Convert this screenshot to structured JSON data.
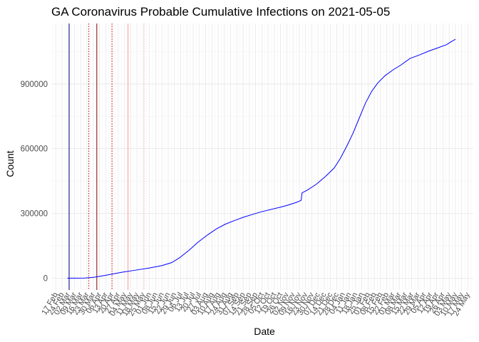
{
  "chart_data": {
    "type": "line",
    "title": "GA Coronavirus Probable Cumulative Infections on 2021-05-05",
    "xlabel": "Date",
    "ylabel": "Count",
    "x_type": "date",
    "xlim": [
      "2020-02-12",
      "2021-05-30"
    ],
    "ylim": [
      -55000,
      1180000
    ],
    "y_ticks": [
      0,
      300000,
      600000,
      900000
    ],
    "y_tick_labels": [
      "0",
      "300000",
      "600000",
      "900000"
    ],
    "x_ticks": [
      {
        "date": "2020-02-17",
        "label": "17 Feb"
      },
      {
        "date": "2020-02-24",
        "label": "24 Feb"
      },
      {
        "date": "2020-03-02",
        "label": "02 Mar"
      },
      {
        "date": "2020-03-09",
        "label": "09 Mar"
      },
      {
        "date": "2020-03-16",
        "label": "16 Mar"
      },
      {
        "date": "2020-03-23",
        "label": "23 Mar"
      },
      {
        "date": "2020-03-30",
        "label": "30 Mar"
      },
      {
        "date": "2020-04-06",
        "label": "06 Apr"
      },
      {
        "date": "2020-04-13",
        "label": "13 Apr"
      },
      {
        "date": "2020-04-20",
        "label": "20 Apr"
      },
      {
        "date": "2020-04-27",
        "label": "27 Apr"
      },
      {
        "date": "2020-05-04",
        "label": "04 May"
      },
      {
        "date": "2020-05-11",
        "label": "11 May"
      },
      {
        "date": "2020-05-18",
        "label": "18 May"
      },
      {
        "date": "2020-05-25",
        "label": "25 May"
      },
      {
        "date": "2020-06-01",
        "label": "01 Jun"
      },
      {
        "date": "2020-06-08",
        "label": "08 Jun"
      },
      {
        "date": "2020-06-15",
        "label": "15 Jun"
      },
      {
        "date": "2020-06-22",
        "label": "22 Jun"
      },
      {
        "date": "2020-06-29",
        "label": "29 Jun"
      },
      {
        "date": "2020-07-06",
        "label": "06 Jul"
      },
      {
        "date": "2020-07-13",
        "label": "13 Jul"
      },
      {
        "date": "2020-07-20",
        "label": "20 Jul"
      },
      {
        "date": "2020-07-27",
        "label": "27 Jul"
      },
      {
        "date": "2020-08-03",
        "label": "03 Aug"
      },
      {
        "date": "2020-08-10",
        "label": "10 Aug"
      },
      {
        "date": "2020-08-17",
        "label": "17 Aug"
      },
      {
        "date": "2020-08-24",
        "label": "24 Aug"
      },
      {
        "date": "2020-08-31",
        "label": "31 Aug"
      },
      {
        "date": "2020-09-07",
        "label": "07 Sep"
      },
      {
        "date": "2020-09-14",
        "label": "14 Sep"
      },
      {
        "date": "2020-09-21",
        "label": "21 Sep"
      },
      {
        "date": "2020-09-28",
        "label": "28 Sep"
      },
      {
        "date": "2020-10-05",
        "label": "05 Oct"
      },
      {
        "date": "2020-10-12",
        "label": "12 Oct"
      },
      {
        "date": "2020-10-19",
        "label": "19 Oct"
      },
      {
        "date": "2020-10-26",
        "label": "26 Oct"
      },
      {
        "date": "2020-11-02",
        "label": "02 Nov"
      },
      {
        "date": "2020-11-09",
        "label": "09 Nov"
      },
      {
        "date": "2020-11-16",
        "label": "16 Nov"
      },
      {
        "date": "2020-11-23",
        "label": "23 Nov"
      },
      {
        "date": "2020-11-30",
        "label": "30 Nov"
      },
      {
        "date": "2020-12-07",
        "label": "07 Dec"
      },
      {
        "date": "2020-12-14",
        "label": "14 Dec"
      },
      {
        "date": "2020-12-21",
        "label": "21 Dec"
      },
      {
        "date": "2020-12-28",
        "label": "28 Dec"
      },
      {
        "date": "2021-01-04",
        "label": "04 Jan"
      },
      {
        "date": "2021-01-11",
        "label": "11 Jan"
      },
      {
        "date": "2021-01-18",
        "label": "18 Jan"
      },
      {
        "date": "2021-01-25",
        "label": "25 Jan"
      },
      {
        "date": "2021-02-01",
        "label": "01 Feb"
      },
      {
        "date": "2021-02-08",
        "label": "08 Feb"
      },
      {
        "date": "2021-02-15",
        "label": "15 Feb"
      },
      {
        "date": "2021-02-22",
        "label": "22 Feb"
      },
      {
        "date": "2021-03-01",
        "label": "01 Mar"
      },
      {
        "date": "2021-03-08",
        "label": "08 Mar"
      },
      {
        "date": "2021-03-15",
        "label": "15 Mar"
      },
      {
        "date": "2021-03-22",
        "label": "22 Mar"
      },
      {
        "date": "2021-03-29",
        "label": "29 Mar"
      },
      {
        "date": "2021-04-05",
        "label": "05 Apr"
      },
      {
        "date": "2021-04-12",
        "label": "12 Apr"
      },
      {
        "date": "2021-04-19",
        "label": "19 Apr"
      },
      {
        "date": "2021-04-26",
        "label": "26 Apr"
      },
      {
        "date": "2021-05-03",
        "label": "03 May"
      },
      {
        "date": "2021-05-10",
        "label": "10 May"
      },
      {
        "date": "2021-05-17",
        "label": "17 May"
      },
      {
        "date": "2021-05-24",
        "label": "24 May"
      }
    ],
    "grid": true,
    "legend": "none",
    "series": [
      {
        "color": "#0000ff",
        "points": [
          {
            "x": "2020-03-01",
            "y": 0
          },
          {
            "x": "2020-03-10",
            "y": 20
          },
          {
            "x": "2020-03-20",
            "y": 500
          },
          {
            "x": "2020-03-31",
            "y": 4000
          },
          {
            "x": "2020-04-10",
            "y": 11000
          },
          {
            "x": "2020-04-20",
            "y": 18500
          },
          {
            "x": "2020-05-01",
            "y": 27000
          },
          {
            "x": "2020-05-15",
            "y": 36000
          },
          {
            "x": "2020-06-01",
            "y": 47000
          },
          {
            "x": "2020-06-15",
            "y": 58000
          },
          {
            "x": "2020-06-26",
            "y": 72000
          },
          {
            "x": "2020-07-05",
            "y": 95000
          },
          {
            "x": "2020-07-15",
            "y": 128000
          },
          {
            "x": "2020-07-25",
            "y": 165000
          },
          {
            "x": "2020-08-05",
            "y": 200000
          },
          {
            "x": "2020-08-15",
            "y": 228000
          },
          {
            "x": "2020-08-25",
            "y": 250000
          },
          {
            "x": "2020-09-05",
            "y": 268000
          },
          {
            "x": "2020-09-15",
            "y": 283000
          },
          {
            "x": "2020-09-25",
            "y": 296000
          },
          {
            "x": "2020-10-05",
            "y": 308000
          },
          {
            "x": "2020-10-15",
            "y": 318000
          },
          {
            "x": "2020-10-25",
            "y": 328000
          },
          {
            "x": "2020-11-03",
            "y": 338000
          },
          {
            "x": "2020-11-12",
            "y": 350000
          },
          {
            "x": "2020-11-18",
            "y": 360000
          },
          {
            "x": "2020-11-19",
            "y": 395000
          },
          {
            "x": "2020-11-25",
            "y": 408000
          },
          {
            "x": "2020-12-05",
            "y": 435000
          },
          {
            "x": "2020-12-15",
            "y": 470000
          },
          {
            "x": "2020-12-25",
            "y": 510000
          },
          {
            "x": "2021-01-01",
            "y": 555000
          },
          {
            "x": "2021-01-08",
            "y": 610000
          },
          {
            "x": "2021-01-15",
            "y": 670000
          },
          {
            "x": "2021-01-22",
            "y": 740000
          },
          {
            "x": "2021-01-29",
            "y": 810000
          },
          {
            "x": "2021-02-05",
            "y": 865000
          },
          {
            "x": "2021-02-12",
            "y": 905000
          },
          {
            "x": "2021-02-20",
            "y": 938000
          },
          {
            "x": "2021-03-01",
            "y": 965000
          },
          {
            "x": "2021-03-10",
            "y": 988000
          },
          {
            "x": "2021-03-20",
            "y": 1018000
          },
          {
            "x": "2021-03-31",
            "y": 1035000
          },
          {
            "x": "2021-04-10",
            "y": 1052000
          },
          {
            "x": "2021-04-20",
            "y": 1067000
          },
          {
            "x": "2021-04-30",
            "y": 1082000
          },
          {
            "x": "2021-05-05",
            "y": 1095000
          },
          {
            "x": "2021-05-10",
            "y": 1107000
          }
        ]
      }
    ],
    "reference_lines": [
      {
        "date": "2020-03-03",
        "color": "#00008b",
        "style": "solid"
      },
      {
        "date": "2020-03-25",
        "color": "#cc0000",
        "style": "dotted"
      },
      {
        "date": "2020-04-03",
        "color": "#8b0000",
        "style": "solid"
      },
      {
        "date": "2020-04-20",
        "color": "#cc0000",
        "style": "dotted"
      },
      {
        "date": "2020-05-08",
        "color": "#ff9999",
        "style": "solid"
      },
      {
        "date": "2020-05-26",
        "color": "#ffaaaa",
        "style": "dotted"
      }
    ]
  }
}
